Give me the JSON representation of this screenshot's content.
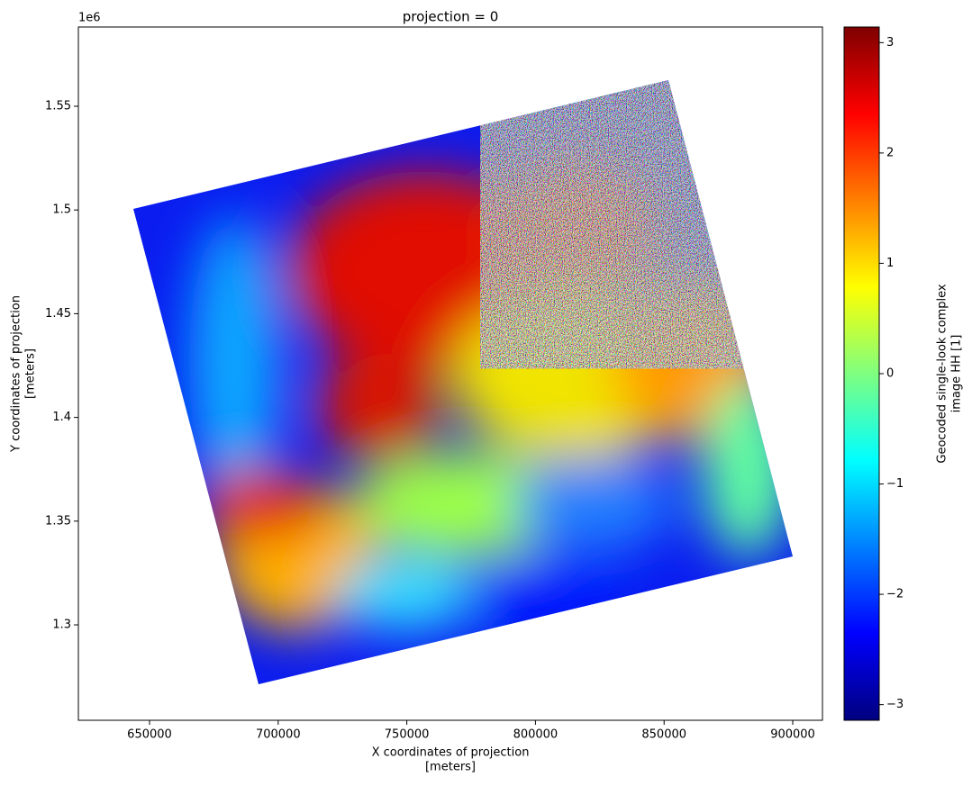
{
  "chart_data": {
    "type": "image",
    "title": "projection = 0",
    "x_label": [
      "X coordinates of projection",
      "[meters]"
    ],
    "y_label": [
      "Y coordinates of projection",
      "[meters]"
    ],
    "y_offset_label": "1e6",
    "xlim": [
      622340,
      911550
    ],
    "xticks": [
      650000,
      700000,
      750000,
      800000,
      850000,
      900000
    ],
    "ylim": [
      1.254,
      1.5882
    ],
    "yticks": [
      1.3,
      1.35,
      1.4,
      1.45,
      1.5,
      1.55
    ],
    "colormap": "jet",
    "colorbar_label": [
      "Geocoded single-look complex",
      "image HH [1]"
    ],
    "clim": [
      -3.1416,
      3.1416
    ],
    "colorbar_ticks": [
      {
        "value": -3,
        "label": "−3"
      },
      {
        "value": -2,
        "label": "−2"
      },
      {
        "value": -1,
        "label": "−1"
      },
      0,
      1,
      2,
      3
    ]
  }
}
